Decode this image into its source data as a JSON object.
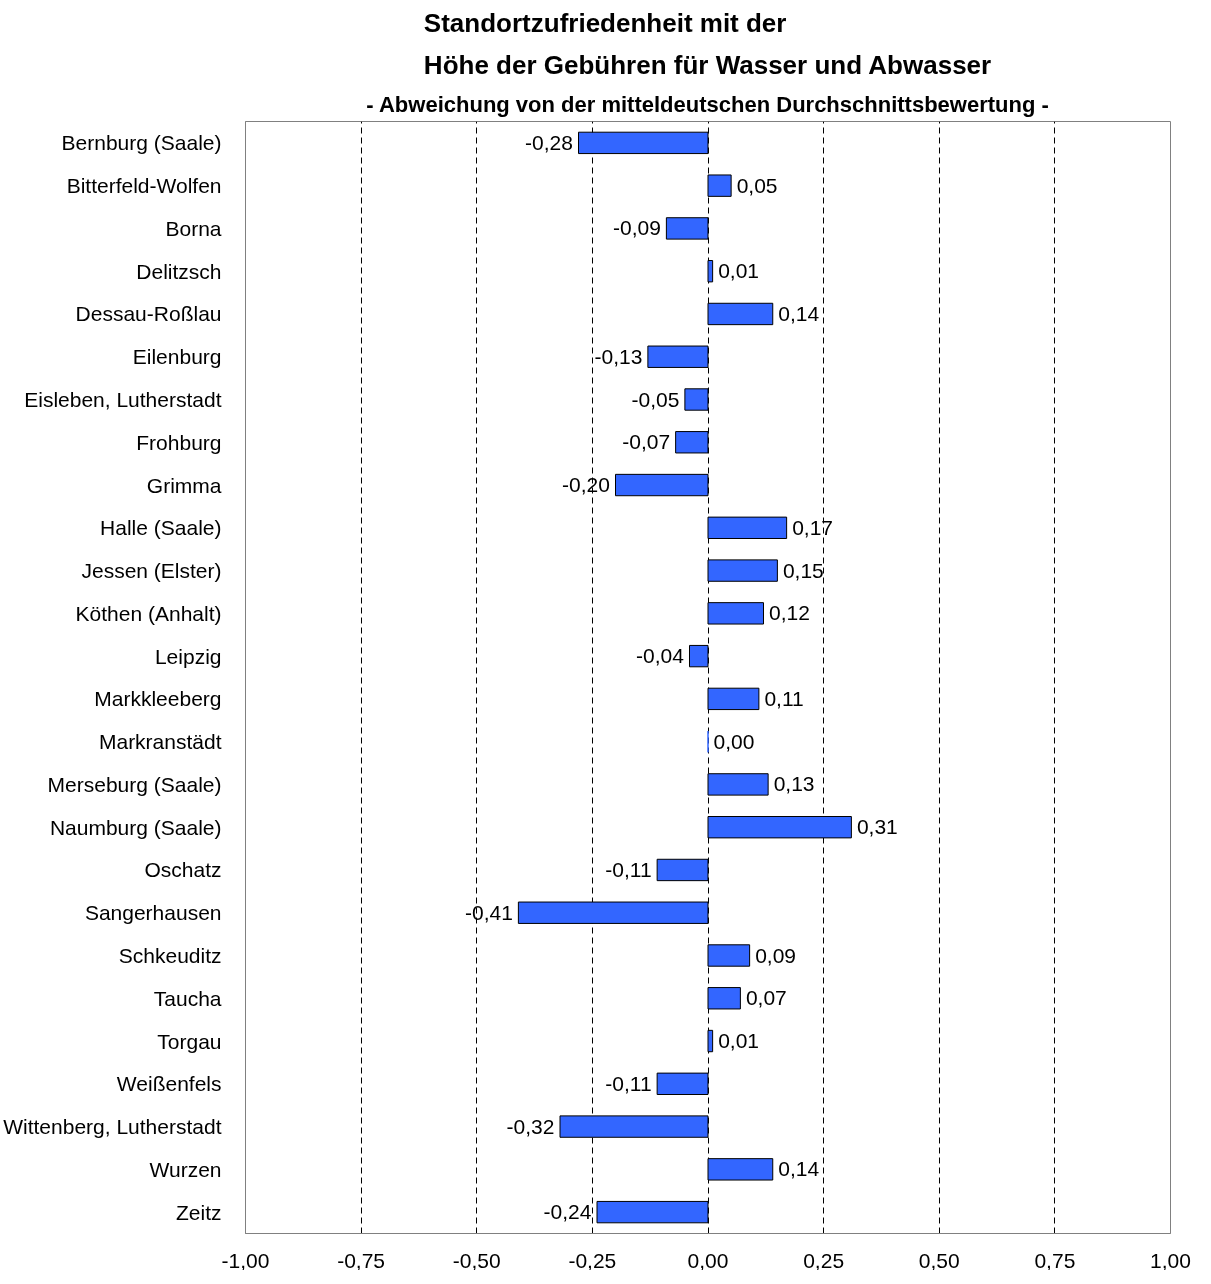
{
  "chart_data": {
    "type": "bar",
    "orientation": "horizontal",
    "title": "Standortzufriedenheit mit der\nHöhe der Gebühren für Wasser und Abwasser",
    "subtitle": "- Abweichung von der mitteldeutschen Durchschnittsbewertung -",
    "categories": [
      "Bernburg (Saale)",
      "Bitterfeld-Wolfen",
      "Borna",
      "Delitzsch",
      "Dessau-Roßlau",
      "Eilenburg",
      "Eisleben, Lutherstadt",
      "Frohburg",
      "Grimma",
      "Halle (Saale)",
      "Jessen (Elster)",
      "Köthen (Anhalt)",
      "Leipzig",
      "Markkleeberg",
      "Markranstädt",
      "Merseburg (Saale)",
      "Naumburg (Saale)",
      "Oschatz",
      "Sangerhausen",
      "Schkeuditz",
      "Taucha",
      "Torgau",
      "Weißenfels",
      "Wittenberg, Lutherstadt",
      "Wurzen",
      "Zeitz"
    ],
    "values": [
      -0.28,
      0.05,
      -0.09,
      0.01,
      0.14,
      -0.13,
      -0.05,
      -0.07,
      -0.2,
      0.17,
      0.15,
      0.12,
      -0.04,
      0.11,
      0.0,
      0.13,
      0.31,
      -0.11,
      -0.41,
      0.09,
      0.07,
      0.01,
      -0.11,
      -0.32,
      0.14,
      -0.24
    ],
    "value_labels": [
      "-0,28",
      "0,05",
      "-0,09",
      "0,01",
      "0,14",
      "-0,13",
      "-0,05",
      "-0,07",
      "-0,20",
      "0,17",
      "0,15",
      "0,12",
      "-0,04",
      "0,11",
      "0,00",
      "0,13",
      "0,31",
      "-0,11",
      "-0,41",
      "0,09",
      "0,07",
      "0,01",
      "-0,11",
      "-0,32",
      "0,14",
      "-0,24"
    ],
    "color": "#3366ff",
    "xlim": [
      -1,
      1
    ],
    "xticks": [
      {
        "value": -1,
        "label": "-1,00"
      },
      {
        "value": -0.75,
        "label": "-0,75"
      },
      {
        "value": -0.5,
        "label": "-0,50"
      },
      {
        "value": -0.25,
        "label": "-0,25"
      },
      {
        "value": 0,
        "label": "0,00"
      },
      {
        "value": 0.25,
        "label": "0,25"
      },
      {
        "value": 0.5,
        "label": "0,50"
      },
      {
        "value": 0.75,
        "label": "0,75"
      },
      {
        "value": 1,
        "label": "1,00"
      }
    ],
    "grid": "x"
  }
}
